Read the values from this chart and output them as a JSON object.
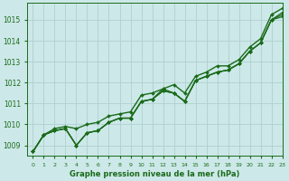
{
  "title": "",
  "xlabel": "Graphe pression niveau de la mer (hPa)",
  "ylabel": "",
  "background_color": "#cce8e8",
  "grid_color": "#b0d0d0",
  "line_color": "#1a6b1a",
  "xlim": [
    -0.5,
    23
  ],
  "ylim": [
    1008.5,
    1015.8
  ],
  "yticks": [
    1009,
    1010,
    1011,
    1012,
    1013,
    1014,
    1015
  ],
  "xticks": [
    0,
    1,
    2,
    3,
    4,
    5,
    6,
    7,
    8,
    9,
    10,
    11,
    12,
    13,
    14,
    15,
    16,
    17,
    18,
    19,
    20,
    21,
    22,
    23
  ],
  "series": [
    [
      1008.7,
      1009.5,
      1009.7,
      1009.8,
      1009.0,
      1009.6,
      1009.7,
      1010.1,
      1010.3,
      1010.3,
      1011.1,
      1011.2,
      1011.7,
      1011.5,
      1011.1,
      1012.1,
      1012.3,
      1012.5,
      1012.6,
      1012.9,
      1013.5,
      1013.9,
      1015.0,
      1015.15
    ],
    [
      1008.7,
      1009.5,
      1009.7,
      1009.8,
      1009.0,
      1009.6,
      1009.7,
      1010.1,
      1010.3,
      1010.3,
      1011.1,
      1011.2,
      1011.6,
      1011.5,
      1011.1,
      1012.1,
      1012.3,
      1012.5,
      1012.6,
      1012.9,
      1013.5,
      1013.9,
      1015.0,
      1015.25
    ],
    [
      1008.7,
      1009.5,
      1009.7,
      1009.8,
      1009.0,
      1009.6,
      1009.7,
      1010.1,
      1010.3,
      1010.3,
      1011.1,
      1011.2,
      1011.6,
      1011.5,
      1011.1,
      1012.1,
      1012.3,
      1012.5,
      1012.6,
      1012.9,
      1013.5,
      1013.9,
      1015.0,
      1015.35
    ],
    [
      1008.7,
      1009.5,
      1009.8,
      1009.9,
      1009.8,
      1010.0,
      1010.1,
      1010.4,
      1010.5,
      1010.6,
      1011.4,
      1011.5,
      1011.7,
      1011.9,
      1011.5,
      1012.3,
      1012.5,
      1012.8,
      1012.8,
      1013.1,
      1013.7,
      1014.1,
      1015.25,
      1015.55
    ]
  ]
}
